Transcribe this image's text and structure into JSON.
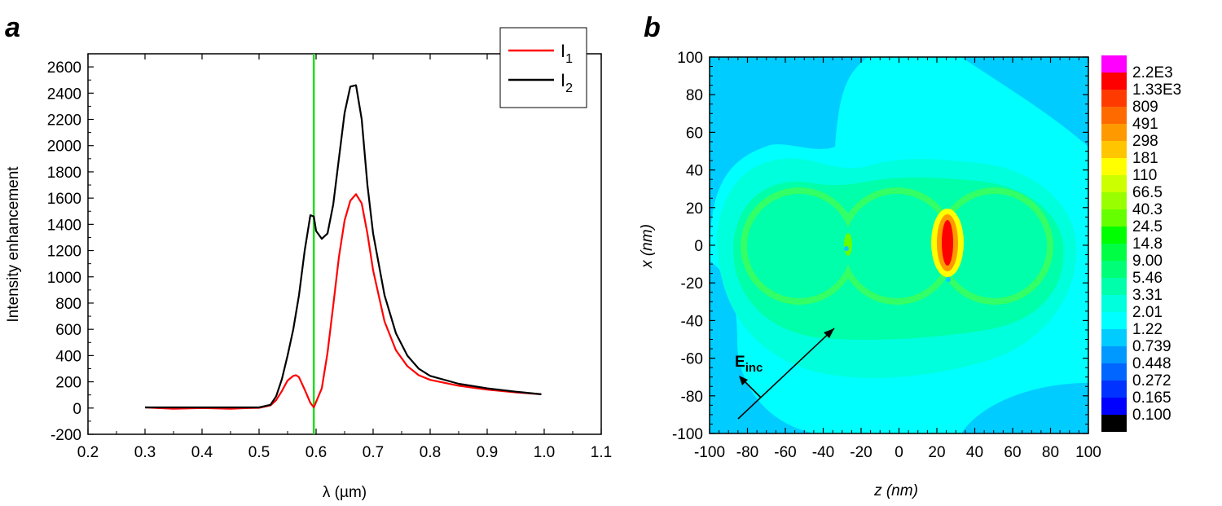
{
  "chart_data": [
    {
      "type": "line",
      "panel_label": "a",
      "xlabel": "λ (µm)",
      "ylabel": "Intensity enhancement",
      "xlim": [
        0.2,
        1.1
      ],
      "ylim": [
        -200,
        2700
      ],
      "xticks": [
        "0.2",
        "0.3",
        "0.4",
        "0.5",
        "0.6",
        "0.7",
        "0.8",
        "0.9",
        "1.0",
        "1.1"
      ],
      "yticks": [
        "-200",
        "0",
        "200",
        "400",
        "600",
        "800",
        "1000",
        "1200",
        "1400",
        "1600",
        "1800",
        "2000",
        "2200",
        "2400",
        "2600"
      ],
      "legend_position": "top-right",
      "marker_line": {
        "x": 0.596,
        "color": "#22dd22"
      },
      "series": [
        {
          "name": "I",
          "subscript": "1",
          "color": "#ff0000",
          "x": [
            0.3,
            0.35,
            0.4,
            0.45,
            0.48,
            0.5,
            0.52,
            0.53,
            0.54,
            0.55,
            0.56,
            0.565,
            0.57,
            0.58,
            0.59,
            0.596,
            0.61,
            0.62,
            0.63,
            0.64,
            0.65,
            0.66,
            0.67,
            0.68,
            0.69,
            0.7,
            0.72,
            0.74,
            0.76,
            0.78,
            0.8,
            0.85,
            0.9,
            0.95,
            0.995
          ],
          "y": [
            5,
            -5,
            0,
            -5,
            0,
            2,
            20,
            60,
            130,
            210,
            245,
            250,
            235,
            140,
            40,
            5,
            150,
            420,
            780,
            1150,
            1430,
            1580,
            1630,
            1560,
            1330,
            1050,
            660,
            440,
            320,
            250,
            215,
            170,
            140,
            120,
            105
          ]
        },
        {
          "name": "I",
          "subscript": "2",
          "color": "#000000",
          "x": [
            0.3,
            0.35,
            0.4,
            0.45,
            0.5,
            0.52,
            0.53,
            0.54,
            0.55,
            0.56,
            0.57,
            0.58,
            0.59,
            0.596,
            0.6,
            0.61,
            0.62,
            0.63,
            0.64,
            0.65,
            0.66,
            0.67,
            0.68,
            0.69,
            0.7,
            0.72,
            0.74,
            0.76,
            0.78,
            0.8,
            0.85,
            0.9,
            0.95,
            0.995
          ],
          "y": [
            5,
            5,
            5,
            5,
            5,
            25,
            90,
            220,
            400,
            600,
            860,
            1200,
            1470,
            1460,
            1350,
            1290,
            1330,
            1550,
            1900,
            2250,
            2450,
            2460,
            2200,
            1700,
            1330,
            860,
            570,
            400,
            300,
            245,
            185,
            150,
            125,
            105
          ]
        }
      ]
    },
    {
      "type": "heatmap",
      "panel_label": "b",
      "xlabel": "z (nm)",
      "ylabel": "x (nm)",
      "xlim": [
        -100,
        100
      ],
      "ylim": [
        -100,
        100
      ],
      "xticks": [
        "-100",
        "-80",
        "-60",
        "-40",
        "-20",
        "0",
        "20",
        "40",
        "60",
        "80",
        "100"
      ],
      "yticks": [
        "-100",
        "-80",
        "-60",
        "-40",
        "-20",
        "0",
        "20",
        "40",
        "60",
        "80",
        "100"
      ],
      "annotation": {
        "text": "E",
        "subscript": "inc"
      },
      "colorbar": [
        {
          "label": "2.2E3",
          "color": "#ff00ff"
        },
        {
          "label": "1.33E3",
          "color": "#ff0000"
        },
        {
          "label": "809",
          "color": "#ff3a00"
        },
        {
          "label": "491",
          "color": "#ff6a00"
        },
        {
          "label": "298",
          "color": "#ff9900"
        },
        {
          "label": "181",
          "color": "#ffc600"
        },
        {
          "label": "110",
          "color": "#ffff00"
        },
        {
          "label": "66.5",
          "color": "#ccff00"
        },
        {
          "label": "40.3",
          "color": "#99ff00"
        },
        {
          "label": "24.5",
          "color": "#66ff00"
        },
        {
          "label": "14.8",
          "color": "#00ff00"
        },
        {
          "label": "9.00",
          "color": "#00ff44"
        },
        {
          "label": "5.46",
          "color": "#00ff77"
        },
        {
          "label": "3.31",
          "color": "#00ffaa"
        },
        {
          "label": "2.01",
          "color": "#00ffdd"
        },
        {
          "label": "1.22",
          "color": "#00ffff"
        },
        {
          "label": "0.739",
          "color": "#00ccff"
        },
        {
          "label": "0.448",
          "color": "#0099ff"
        },
        {
          "label": "0.272",
          "color": "#0066ff"
        },
        {
          "label": "0.165",
          "color": "#0033ff"
        },
        {
          "label": "0.100",
          "color": "#0000ff"
        },
        {
          "label": "",
          "color": "#000000"
        }
      ]
    }
  ]
}
